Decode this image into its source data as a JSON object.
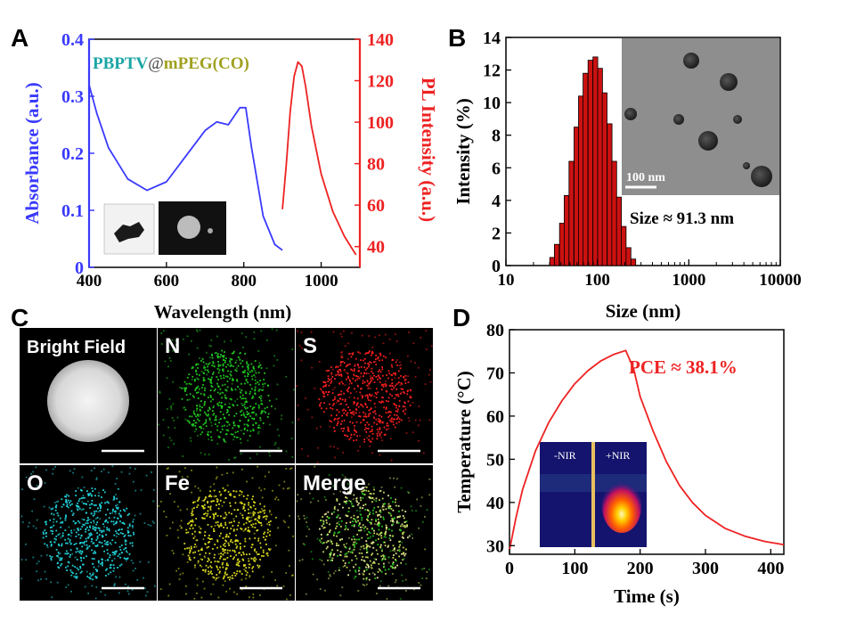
{
  "panels": {
    "A": {
      "letter": "A",
      "sample_prefix": "PBPTV",
      "sample_at": "@",
      "sample_suffix": "mPEG(CO)",
      "colors": {
        "absorbance": "#3a3aff",
        "pl": "#ee2222",
        "prefix": "#1aa5a5",
        "suffix": "#a0a020"
      }
    },
    "B": {
      "letter": "B",
      "scale_label": "100 nm",
      "size_label": "Size ≈ 91.3 nm",
      "bar_color": "#cc1111"
    },
    "C": {
      "letter": "C",
      "tiles": [
        {
          "label": "Bright Field",
          "color": "#ffffff"
        },
        {
          "label": "N",
          "color": "#22cc22"
        },
        {
          "label": "S",
          "color": "#ff2020"
        },
        {
          "label": "O",
          "color": "#22d8e0"
        },
        {
          "label": "Fe",
          "color": "#e0e020"
        },
        {
          "label": "Merge",
          "color": "#c8e060"
        }
      ]
    },
    "D": {
      "letter": "D",
      "pce_label": "PCE ≈ 38.1%",
      "inset_off": "-NIR",
      "inset_on": "+NIR",
      "curve_color": "#ee2222"
    }
  },
  "chart_data": [
    {
      "panel": "A",
      "type": "line",
      "xlabel": "Wavelength (nm)",
      "ylabel": "Absorbance (a.u.)",
      "y2label": "PL Intensity (a.u.)",
      "xlim": [
        400,
        1100
      ],
      "ylim": [
        0,
        0.4
      ],
      "y2lim": [
        30,
        140
      ],
      "xticks": [
        400,
        600,
        800,
        1000
      ],
      "yticks": [
        0,
        0.1,
        0.2,
        0.3,
        0.4
      ],
      "yticklabels": [
        "0",
        "0.1",
        "0.2",
        "0.3",
        "0.4"
      ],
      "y2ticks": [
        40,
        60,
        80,
        100,
        120,
        140
      ],
      "series": [
        {
          "name": "Absorbance",
          "axis": "left",
          "x": [
            400,
            420,
            450,
            500,
            550,
            600,
            650,
            700,
            730,
            760,
            790,
            805,
            820,
            850,
            880,
            900
          ],
          "values": [
            0.32,
            0.27,
            0.21,
            0.155,
            0.135,
            0.15,
            0.195,
            0.24,
            0.255,
            0.25,
            0.28,
            0.28,
            0.21,
            0.09,
            0.04,
            0.03
          ]
        },
        {
          "name": "PL Intensity",
          "axis": "right",
          "x": [
            900,
            910,
            920,
            930,
            940,
            950,
            960,
            975,
            1000,
            1030,
            1060,
            1090
          ],
          "values": [
            58,
            80,
            105,
            122,
            129,
            127,
            117,
            98,
            75,
            57,
            45,
            36
          ]
        }
      ]
    },
    {
      "panel": "B",
      "type": "bar",
      "xscale": "log",
      "xlabel": "Size (nm)",
      "ylabel": "Intensity (%)",
      "xlim": [
        10,
        10000
      ],
      "ylim": [
        0,
        14
      ],
      "xticks": [
        10,
        100,
        1000,
        10000
      ],
      "yticks": [
        0,
        2,
        4,
        6,
        8,
        10,
        12,
        14
      ],
      "x": [
        32,
        36,
        41,
        46,
        52,
        59,
        66,
        74,
        84,
        95,
        107,
        120,
        136,
        153,
        172,
        194,
        219,
        247
      ],
      "values": [
        0.5,
        1.3,
        2.6,
        4.3,
        6.4,
        8.5,
        10.4,
        11.8,
        12.6,
        12.8,
        12.1,
        10.6,
        8.7,
        6.4,
        4.2,
        2.4,
        1.1,
        0.4
      ]
    },
    {
      "panel": "D",
      "type": "line",
      "xlabel": "Time (s)",
      "ylabel": "Temperature (°C)",
      "xlim": [
        0,
        420
      ],
      "ylim": [
        28,
        80
      ],
      "xticks": [
        0,
        100,
        200,
        300,
        400
      ],
      "yticks": [
        30,
        40,
        50,
        60,
        70,
        80
      ],
      "series": [
        {
          "name": "Temperature",
          "x": [
            0,
            10,
            20,
            40,
            60,
            80,
            100,
            120,
            140,
            160,
            178,
            190,
            200,
            220,
            240,
            260,
            280,
            300,
            330,
            360,
            390,
            420
          ],
          "values": [
            29,
            36.5,
            43,
            52,
            58.5,
            63.5,
            67.5,
            70.5,
            72.8,
            74.3,
            75.2,
            71,
            64.5,
            56.5,
            49.5,
            44,
            40,
            37,
            34,
            32.2,
            31,
            30.2
          ]
        }
      ]
    }
  ]
}
